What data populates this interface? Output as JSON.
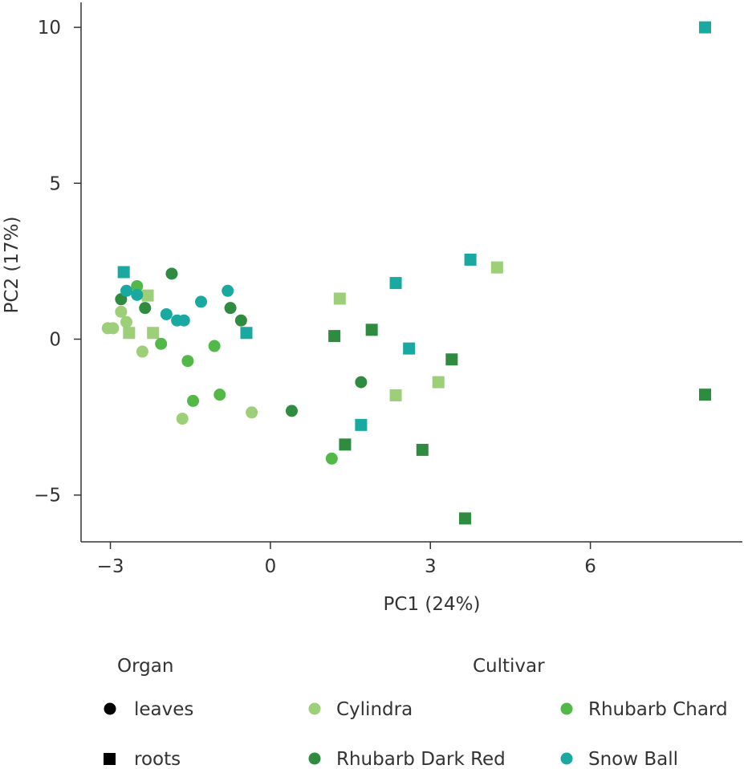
{
  "chart_data": {
    "type": "scatter",
    "xlabel": "PC1 (24%)",
    "ylabel": "PC2 (17%)",
    "xlim": [
      -3.55,
      8.85
    ],
    "ylim": [
      -6.5,
      10.8
    ],
    "xticks": [
      -3,
      0,
      3,
      6
    ],
    "yticks": [
      -5,
      0,
      5,
      10
    ],
    "xtick_labels": [
      "−3",
      "0",
      "3",
      "6"
    ],
    "ytick_labels": [
      "−5",
      "0",
      "5",
      "10"
    ],
    "colors": {
      "Cylindra": "#9ccf78",
      "Rhubarb Chard": "#52b848",
      "Rhubarb Dark Red": "#2e8b3f",
      "Snow Ball": "#1aa9a0"
    },
    "legend": {
      "organ_title": "Organ",
      "cultivar_title": "Cultivar",
      "organ": [
        {
          "label": "leaves",
          "shape": "circle"
        },
        {
          "label": "roots",
          "shape": "square"
        }
      ],
      "cultivar": [
        "Cylindra",
        "Rhubarb Chard",
        "Rhubarb Dark Red",
        "Snow Ball"
      ]
    },
    "points": [
      {
        "x": -3.05,
        "y": 0.35,
        "organ": "leaves",
        "cultivar": "Cylindra"
      },
      {
        "x": -2.95,
        "y": 0.35,
        "organ": "leaves",
        "cultivar": "Cylindra"
      },
      {
        "x": -2.8,
        "y": 0.88,
        "organ": "leaves",
        "cultivar": "Cylindra"
      },
      {
        "x": -2.7,
        "y": 0.55,
        "organ": "leaves",
        "cultivar": "Cylindra"
      },
      {
        "x": -2.4,
        "y": -0.4,
        "organ": "leaves",
        "cultivar": "Cylindra"
      },
      {
        "x": -1.65,
        "y": -2.55,
        "organ": "leaves",
        "cultivar": "Cylindra"
      },
      {
        "x": -0.35,
        "y": -2.35,
        "organ": "leaves",
        "cultivar": "Cylindra"
      },
      {
        "x": -2.65,
        "y": 0.2,
        "organ": "roots",
        "cultivar": "Cylindra"
      },
      {
        "x": -2.3,
        "y": 1.4,
        "organ": "roots",
        "cultivar": "Cylindra"
      },
      {
        "x": -2.2,
        "y": 0.2,
        "organ": "roots",
        "cultivar": "Cylindra"
      },
      {
        "x": 1.3,
        "y": 1.3,
        "organ": "roots",
        "cultivar": "Cylindra"
      },
      {
        "x": 2.35,
        "y": -1.8,
        "organ": "roots",
        "cultivar": "Cylindra"
      },
      {
        "x": 3.15,
        "y": -1.38,
        "organ": "roots",
        "cultivar": "Cylindra"
      },
      {
        "x": 4.25,
        "y": 2.3,
        "organ": "roots",
        "cultivar": "Cylindra"
      },
      {
        "x": -2.5,
        "y": 1.7,
        "organ": "leaves",
        "cultivar": "Rhubarb Chard"
      },
      {
        "x": -2.05,
        "y": -0.15,
        "organ": "leaves",
        "cultivar": "Rhubarb Chard"
      },
      {
        "x": -1.55,
        "y": -0.7,
        "organ": "leaves",
        "cultivar": "Rhubarb Chard"
      },
      {
        "x": -1.45,
        "y": -1.98,
        "organ": "leaves",
        "cultivar": "Rhubarb Chard"
      },
      {
        "x": -1.05,
        "y": -0.22,
        "organ": "leaves",
        "cultivar": "Rhubarb Chard"
      },
      {
        "x": -0.95,
        "y": -1.78,
        "organ": "leaves",
        "cultivar": "Rhubarb Chard"
      },
      {
        "x": 1.15,
        "y": -3.83,
        "organ": "leaves",
        "cultivar": "Rhubarb Chard"
      },
      {
        "x": -2.8,
        "y": 1.28,
        "organ": "leaves",
        "cultivar": "Rhubarb Dark Red"
      },
      {
        "x": -2.35,
        "y": 1.0,
        "organ": "leaves",
        "cultivar": "Rhubarb Dark Red"
      },
      {
        "x": -1.85,
        "y": 2.1,
        "organ": "leaves",
        "cultivar": "Rhubarb Dark Red"
      },
      {
        "x": -0.75,
        "y": 1.0,
        "organ": "leaves",
        "cultivar": "Rhubarb Dark Red"
      },
      {
        "x": -0.55,
        "y": 0.6,
        "organ": "leaves",
        "cultivar": "Rhubarb Dark Red"
      },
      {
        "x": 0.4,
        "y": -2.3,
        "organ": "leaves",
        "cultivar": "Rhubarb Dark Red"
      },
      {
        "x": 1.7,
        "y": -1.38,
        "organ": "leaves",
        "cultivar": "Rhubarb Dark Red"
      },
      {
        "x": 1.2,
        "y": 0.1,
        "organ": "roots",
        "cultivar": "Rhubarb Dark Red"
      },
      {
        "x": 1.4,
        "y": -3.38,
        "organ": "roots",
        "cultivar": "Rhubarb Dark Red"
      },
      {
        "x": 1.9,
        "y": 0.3,
        "organ": "roots",
        "cultivar": "Rhubarb Dark Red"
      },
      {
        "x": 2.85,
        "y": -3.55,
        "organ": "roots",
        "cultivar": "Rhubarb Dark Red"
      },
      {
        "x": 3.4,
        "y": -0.65,
        "organ": "roots",
        "cultivar": "Rhubarb Dark Red"
      },
      {
        "x": 3.65,
        "y": -5.75,
        "organ": "roots",
        "cultivar": "Rhubarb Dark Red"
      },
      {
        "x": 8.15,
        "y": -1.78,
        "organ": "roots",
        "cultivar": "Rhubarb Dark Red"
      },
      {
        "x": -2.7,
        "y": 1.55,
        "organ": "leaves",
        "cultivar": "Snow Ball"
      },
      {
        "x": -2.5,
        "y": 1.42,
        "organ": "leaves",
        "cultivar": "Snow Ball"
      },
      {
        "x": -1.95,
        "y": 0.8,
        "organ": "leaves",
        "cultivar": "Snow Ball"
      },
      {
        "x": -1.75,
        "y": 0.6,
        "organ": "leaves",
        "cultivar": "Snow Ball"
      },
      {
        "x": -1.62,
        "y": 0.6,
        "organ": "leaves",
        "cultivar": "Snow Ball"
      },
      {
        "x": -1.3,
        "y": 1.2,
        "organ": "leaves",
        "cultivar": "Snow Ball"
      },
      {
        "x": -0.8,
        "y": 1.55,
        "organ": "leaves",
        "cultivar": "Snow Ball"
      },
      {
        "x": -2.75,
        "y": 2.15,
        "organ": "roots",
        "cultivar": "Snow Ball"
      },
      {
        "x": -0.45,
        "y": 0.2,
        "organ": "roots",
        "cultivar": "Snow Ball"
      },
      {
        "x": 1.7,
        "y": -2.75,
        "organ": "roots",
        "cultivar": "Snow Ball"
      },
      {
        "x": 2.35,
        "y": 1.8,
        "organ": "roots",
        "cultivar": "Snow Ball"
      },
      {
        "x": 2.6,
        "y": -0.3,
        "organ": "roots",
        "cultivar": "Snow Ball"
      },
      {
        "x": 3.75,
        "y": 2.55,
        "organ": "roots",
        "cultivar": "Snow Ball"
      },
      {
        "x": 8.15,
        "y": 10.0,
        "organ": "roots",
        "cultivar": "Snow Ball"
      }
    ]
  }
}
